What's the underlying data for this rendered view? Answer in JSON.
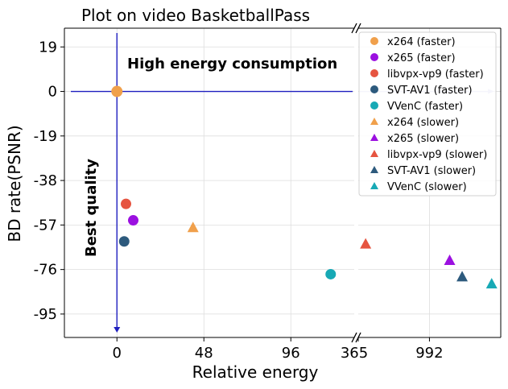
{
  "chart_data": {
    "type": "scatter",
    "title": "Plot on video BasketballPass",
    "xlabel": "Relative energy",
    "ylabel": "BD rate(PSNR)",
    "broken_x_axis": true,
    "left_panel": {
      "xlim": [
        -29,
        131
      ],
      "xticks": [
        "0",
        "48",
        "96"
      ]
    },
    "right_panel": {
      "xlim": [
        365,
        1620
      ],
      "xticks": [
        "365",
        "992"
      ]
    },
    "ylim": [
      -105,
      27
    ],
    "yticks": [
      "19",
      "0",
      "-19",
      "-38",
      "-57",
      "-76",
      "-95"
    ],
    "grid": true,
    "legend_position": "upper right",
    "annotations": {
      "top": "High energy consumption",
      "left": "Best quality"
    },
    "reference_lines": {
      "horizontal_y": 0,
      "vertical_x": 0,
      "color": "#1f1fbf"
    },
    "origin_point": {
      "x": 0,
      "y": 0,
      "color": "#f0a04b"
    },
    "series": [
      {
        "name": "x264 (faster)",
        "marker": "circle",
        "color": "#f0a04b",
        "points": []
      },
      {
        "name": "x265 (faster)",
        "marker": "circle",
        "color": "#9b10e0",
        "points": [
          {
            "x": 9,
            "y": -55
          }
        ]
      },
      {
        "name": "libvpx-vp9 (faster)",
        "marker": "circle",
        "color": "#e65440",
        "points": [
          {
            "x": 5,
            "y": -48
          }
        ]
      },
      {
        "name": "SVT-AV1 (faster)",
        "marker": "circle",
        "color": "#2d5a7d",
        "points": [
          {
            "x": 4,
            "y": -64
          }
        ]
      },
      {
        "name": "VVenC (faster)",
        "marker": "circle",
        "color": "#17a9b5",
        "points": [
          {
            "x": 118,
            "y": -78
          }
        ]
      },
      {
        "name": "x264 (slower)",
        "marker": "triangle",
        "color": "#f0a04b",
        "points": [
          {
            "x": 42,
            "y": -58
          }
        ]
      },
      {
        "name": "x265 (slower)",
        "marker": "triangle",
        "color": "#9b10e0",
        "points": [
          {
            "x": 1170,
            "y": -72
          }
        ]
      },
      {
        "name": "libvpx-vp9 (slower)",
        "marker": "triangle",
        "color": "#e65440",
        "points": [
          {
            "x": 430,
            "y": -65
          }
        ]
      },
      {
        "name": "SVT-AV1 (slower)",
        "marker": "triangle",
        "color": "#2d5a7d",
        "points": [
          {
            "x": 1280,
            "y": -79
          }
        ]
      },
      {
        "name": "VVenC (slower)",
        "marker": "triangle",
        "color": "#17a9b5",
        "points": [
          {
            "x": 1540,
            "y": -82
          }
        ]
      }
    ]
  }
}
